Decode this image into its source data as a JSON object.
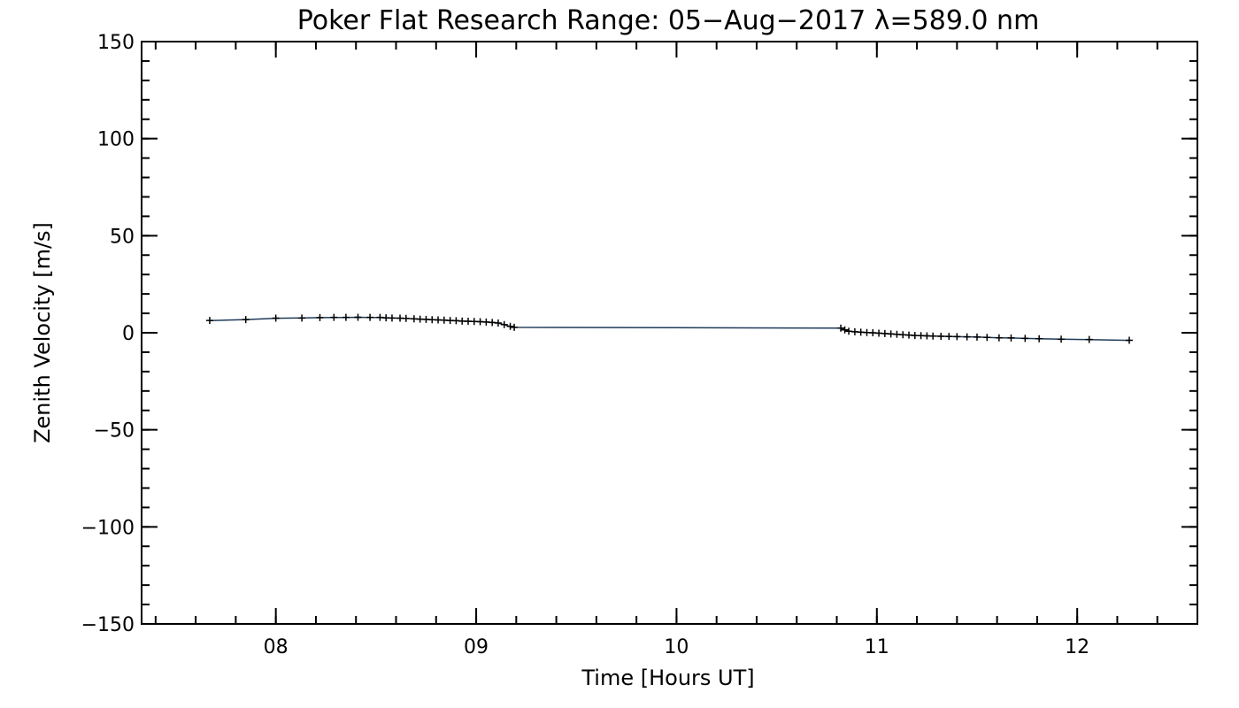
{
  "chart_data": {
    "type": "line",
    "title": "Poker Flat Research Range: 05−Aug−2017 λ=589.0 nm",
    "xlabel": "Time [Hours UT]",
    "ylabel": "Zenith Velocity [m/s]",
    "xlim": [
      7.33,
      12.6
    ],
    "ylim": [
      -150,
      150
    ],
    "x_major_ticks": [
      8,
      9,
      10,
      11,
      12
    ],
    "x_tick_labels": [
      "08",
      "09",
      "10",
      "11",
      "12"
    ],
    "x_minor_step": 0.2,
    "y_major_ticks": [
      150,
      100,
      50,
      0,
      -50,
      -100,
      -150
    ],
    "y_tick_labels": [
      "150",
      "100",
      "50",
      "0",
      "−50",
      "−100",
      "−150"
    ],
    "y_minor_step": 10,
    "grid": false,
    "line_color": "#1f3a5a",
    "marker": "+",
    "series": [
      {
        "name": "Zenith Velocity",
        "x": [
          7.67,
          7.85,
          8.0,
          8.13,
          8.22,
          8.29,
          8.35,
          8.41,
          8.47,
          8.52,
          8.55,
          8.58,
          8.62,
          8.65,
          8.69,
          8.72,
          8.75,
          8.78,
          8.81,
          8.84,
          8.87,
          8.9,
          8.93,
          8.96,
          8.99,
          9.02,
          9.05,
          9.08,
          9.11,
          9.14,
          9.17,
          9.19,
          10.82,
          10.84,
          10.86,
          10.89,
          10.92,
          10.95,
          10.98,
          11.01,
          11.04,
          11.07,
          11.1,
          11.13,
          11.16,
          11.19,
          11.22,
          11.25,
          11.28,
          11.32,
          11.36,
          11.4,
          11.45,
          11.5,
          11.55,
          11.61,
          11.67,
          11.74,
          11.81,
          11.92,
          12.06,
          12.26
        ],
        "y": [
          6.3,
          6.8,
          7.5,
          7.6,
          7.8,
          7.9,
          7.9,
          8.0,
          7.9,
          7.9,
          7.7,
          7.6,
          7.5,
          7.4,
          7.2,
          7.0,
          6.9,
          6.7,
          6.6,
          6.5,
          6.3,
          6.2,
          6.0,
          5.9,
          5.8,
          5.7,
          5.5,
          5.3,
          5.0,
          4.2,
          3.3,
          2.8,
          2.4,
          1.5,
          0.8,
          0.5,
          0.3,
          0.1,
          0.0,
          -0.2,
          -0.4,
          -0.6,
          -0.8,
          -1.0,
          -1.2,
          -1.4,
          -1.5,
          -1.6,
          -1.7,
          -1.8,
          -1.9,
          -2.0,
          -2.1,
          -2.2,
          -2.4,
          -2.6,
          -2.7,
          -2.9,
          -3.1,
          -3.3,
          -3.5,
          -3.9
        ]
      }
    ]
  }
}
